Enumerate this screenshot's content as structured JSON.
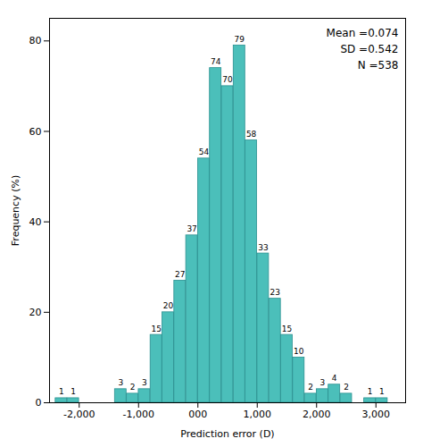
{
  "chart_data": {
    "type": "bar",
    "xlabel": "Prediction error (D)",
    "ylabel": "Frequency (%)",
    "x": [
      -2300,
      -2100,
      -1300,
      -1100,
      -900,
      -700,
      -500,
      -300,
      -100,
      100,
      300,
      500,
      700,
      900,
      1100,
      1300,
      1500,
      1700,
      1900,
      2100,
      2300,
      2500,
      2900,
      3100
    ],
    "values": [
      1,
      1,
      3,
      2,
      3,
      15,
      20,
      27,
      37,
      54,
      74,
      70,
      79,
      58,
      33,
      23,
      15,
      10,
      2,
      3,
      4,
      2,
      1,
      1
    ],
    "color": "#4bbfba",
    "xlim": [
      -2500,
      3500
    ],
    "xticks": [
      {
        "value": -2000,
        "label": "-2,000"
      },
      {
        "value": -1000,
        "label": "-1,000"
      },
      {
        "value": 0,
        "label": "000"
      },
      {
        "value": 1000,
        "label": "1,000"
      },
      {
        "value": 2000,
        "label": "2,000"
      },
      {
        "value": 3000,
        "label": "3,000"
      }
    ],
    "ylim": [
      0,
      85
    ],
    "yticks": [
      0,
      20,
      40,
      60,
      80
    ],
    "data_labels": true,
    "grid": false,
    "annotation": "Mean =0.074\nSD =0.542\nN =538"
  }
}
